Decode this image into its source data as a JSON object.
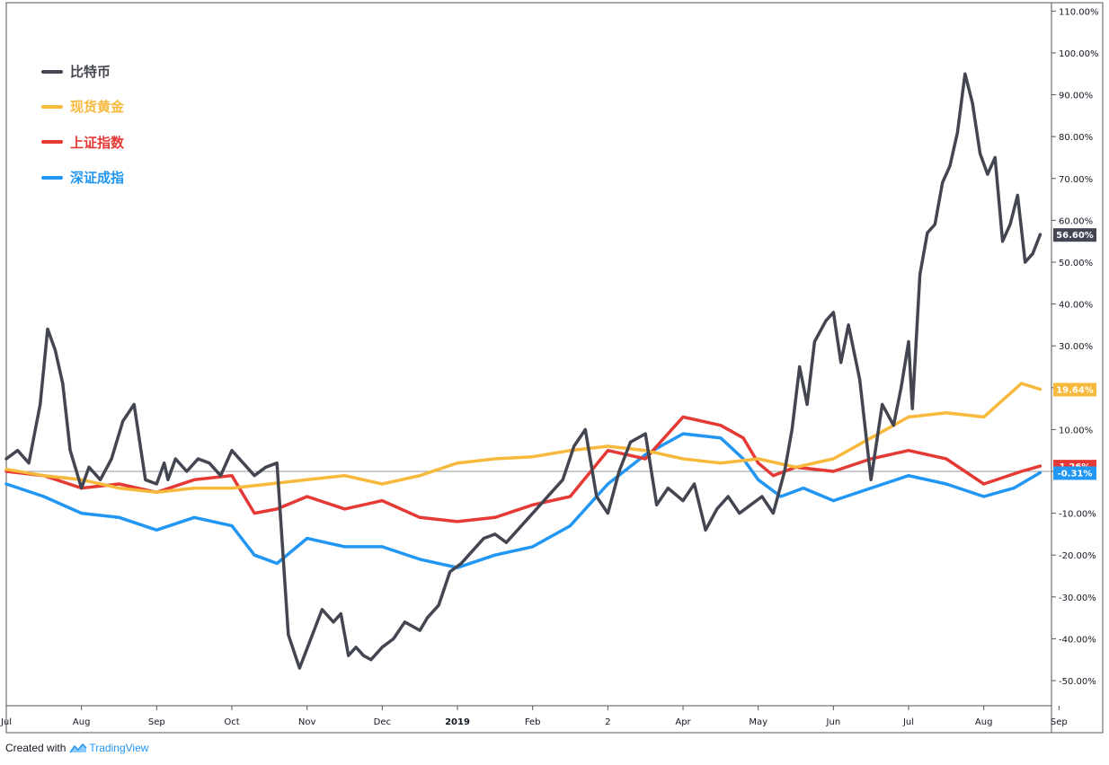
{
  "chart_data": {
    "type": "line",
    "title": "",
    "xlabel": "",
    "ylabel": "",
    "unit": "%",
    "ylim": [
      -56,
      112
    ],
    "y_ticks": [
      110,
      100,
      90,
      80,
      70,
      60,
      50,
      40,
      30,
      20,
      10,
      0,
      -10,
      -20,
      -30,
      -40,
      -50
    ],
    "y_tick_labels": [
      "110.00%",
      "100.00%",
      "90.00%",
      "80.00%",
      "70.00%",
      "60.00%",
      "50.00%",
      "40.00%",
      "30.00%",
      "20.00%",
      "10.00%",
      "0.00%",
      "-10.00%",
      "-20.00%",
      "-30.00%",
      "-40.00%",
      "-50.00%"
    ],
    "x_range_months": [
      0,
      13.9
    ],
    "x_ticks": [
      {
        "label": "Jul",
        "month": 0
      },
      {
        "label": "Aug",
        "month": 1
      },
      {
        "label": "Sep",
        "month": 2
      },
      {
        "label": "Oct",
        "month": 3
      },
      {
        "label": "Nov",
        "month": 4
      },
      {
        "label": "Dec",
        "month": 5
      },
      {
        "label": "2019",
        "month": 6,
        "bold": true
      },
      {
        "label": "Feb",
        "month": 7
      },
      {
        "label": "2",
        "month": 8
      },
      {
        "label": "Apr",
        "month": 9
      },
      {
        "label": "May",
        "month": 10
      },
      {
        "label": "Jun",
        "month": 11
      },
      {
        "label": "Jul",
        "month": 12
      },
      {
        "label": "Aug",
        "month": 13
      },
      {
        "label": "Sep",
        "month": 14
      }
    ],
    "baseline": 0,
    "series": [
      {
        "name": "比特币",
        "color": "#434651",
        "last_label": "56.60%",
        "last": 56.6,
        "x": [
          0,
          0.15,
          0.3,
          0.45,
          0.55,
          0.65,
          0.75,
          0.85,
          1.0,
          1.1,
          1.25,
          1.4,
          1.55,
          1.7,
          1.85,
          2.0,
          2.1,
          2.15,
          2.25,
          2.4,
          2.55,
          2.7,
          2.85,
          3.0,
          3.15,
          3.3,
          3.45,
          3.6,
          3.75,
          3.9,
          4.05,
          4.2,
          4.35,
          4.45,
          4.55,
          4.65,
          4.75,
          4.85,
          5.0,
          5.15,
          5.3,
          5.4,
          5.5,
          5.6,
          5.75,
          5.9,
          6.05,
          6.2,
          6.35,
          6.5,
          6.65,
          6.8,
          6.95,
          7.1,
          7.25,
          7.4,
          7.55,
          7.7,
          7.85,
          8.0,
          8.15,
          8.3,
          8.5,
          8.65,
          8.8,
          9.0,
          9.15,
          9.3,
          9.45,
          9.6,
          9.75,
          9.9,
          10.05,
          10.2,
          10.35,
          10.45,
          10.55,
          10.65,
          10.75,
          10.9,
          11.0,
          11.1,
          11.2,
          11.35,
          11.5,
          11.65,
          11.8,
          11.9,
          12.0,
          12.05,
          12.15,
          12.25,
          12.35,
          12.45,
          12.55,
          12.65,
          12.75,
          12.85,
          12.95,
          13.05,
          13.15,
          13.25,
          13.35,
          13.45,
          13.55,
          13.65,
          13.75
        ],
        "values": [
          3,
          5,
          2,
          16,
          34,
          29,
          21,
          5,
          -4,
          1,
          -2,
          3,
          12,
          16,
          -2,
          -3,
          2,
          -2,
          3,
          0,
          3,
          2,
          -1,
          5,
          2,
          -1,
          1,
          2,
          -39,
          -47,
          -40,
          -33,
          -36,
          -34,
          -44,
          -42,
          -44,
          -45,
          -42,
          -40,
          -36,
          -37,
          -38,
          -35,
          -32,
          -24,
          -22,
          -19,
          -16,
          -15,
          -17,
          -14,
          -11,
          -8,
          -5,
          -2,
          6,
          10,
          -6,
          -10,
          0,
          7,
          9,
          -8,
          -4,
          -7,
          -3,
          -14,
          -9,
          -6,
          -10,
          -8,
          -6,
          -10,
          0,
          10,
          25,
          16,
          31,
          36,
          38,
          26,
          35,
          22,
          -2,
          16,
          11,
          20,
          31,
          15,
          47,
          57,
          59,
          69,
          73,
          81,
          95,
          88,
          76,
          71,
          75,
          55,
          59,
          66,
          50,
          52,
          56.6
        ]
      },
      {
        "name": "现货黄金",
        "color": "#f6b93b",
        "last_label": "19.64%",
        "last": 19.64,
        "x": [
          0,
          0.5,
          1.0,
          1.5,
          2.0,
          2.5,
          3.0,
          3.5,
          4.0,
          4.5,
          5.0,
          5.5,
          6.0,
          6.5,
          7.0,
          7.5,
          8.0,
          8.5,
          9.0,
          9.5,
          10.0,
          10.5,
          11.0,
          11.5,
          12.0,
          12.5,
          13.0,
          13.5,
          13.75
        ],
        "values": [
          0.5,
          -1,
          -2,
          -4,
          -5,
          -4,
          -4,
          -3,
          -2,
          -1,
          -3,
          -1,
          2,
          3,
          3.5,
          5,
          6,
          5,
          3,
          2,
          3,
          1,
          3,
          8,
          13,
          14,
          13,
          21,
          19.64
        ]
      },
      {
        "name": "上证指数",
        "color": "#e53935",
        "last_label": "1.26%",
        "last": 1.26,
        "x": [
          0,
          0.5,
          1.0,
          1.5,
          2.0,
          2.5,
          3.0,
          3.3,
          3.6,
          4.0,
          4.5,
          5.0,
          5.5,
          6.0,
          6.5,
          7.0,
          7.5,
          8.0,
          8.5,
          9.0,
          9.5,
          9.8,
          10.0,
          10.2,
          10.5,
          11.0,
          11.5,
          12.0,
          12.5,
          13.0,
          13.5,
          13.75
        ],
        "values": [
          0,
          -1,
          -4,
          -3,
          -5,
          -2,
          -1,
          -10,
          -9,
          -6,
          -9,
          -7,
          -11,
          -12,
          -11,
          -8,
          -6,
          5,
          3,
          13,
          11,
          8,
          2,
          -1,
          1,
          0,
          3,
          5,
          3,
          -3,
          0,
          1.26
        ]
      },
      {
        "name": "深证成指",
        "color": "#2196f3",
        "last_label": "-0.31%",
        "last": -0.31,
        "x": [
          0,
          0.5,
          1.0,
          1.5,
          2.0,
          2.5,
          3.0,
          3.3,
          3.6,
          4.0,
          4.5,
          5.0,
          5.5,
          6.0,
          6.5,
          7.0,
          7.5,
          8.0,
          8.5,
          9.0,
          9.5,
          9.8,
          10.0,
          10.3,
          10.6,
          11.0,
          11.5,
          12.0,
          12.5,
          13.0,
          13.4,
          13.75
        ],
        "values": [
          -3,
          -6,
          -10,
          -11,
          -14,
          -11,
          -13,
          -20,
          -22,
          -16,
          -18,
          -18,
          -21,
          -23,
          -20,
          -18,
          -13,
          -3,
          4,
          9,
          8,
          3,
          -2,
          -6,
          -4,
          -7,
          -4,
          -1,
          -3,
          -6,
          -4,
          -0.31
        ]
      }
    ]
  },
  "footer": {
    "created_with": "Created with",
    "brand": "TradingView"
  }
}
